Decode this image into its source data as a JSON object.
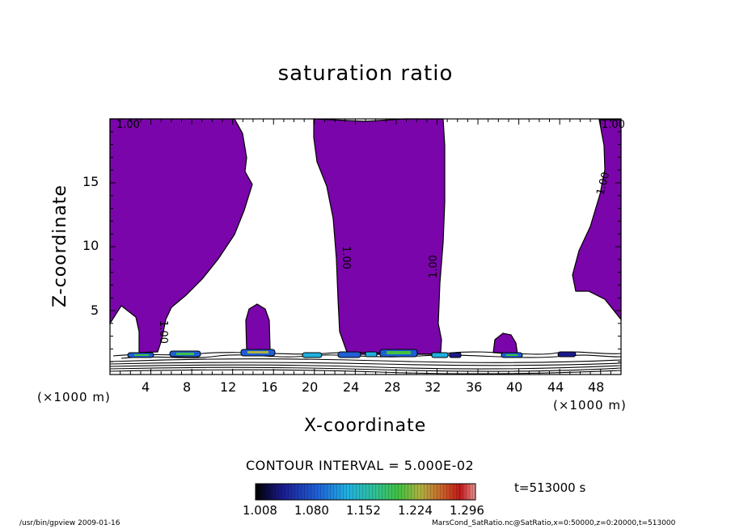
{
  "chart_data": {
    "type": "contour",
    "title": "saturation ratio",
    "xlabel": "X-coordinate",
    "ylabel": "Z-coordinate",
    "x_unit": "(×1000 m)",
    "xlim": [
      0,
      50
    ],
    "ylim": [
      0,
      20
    ],
    "x_ticks": [
      "4",
      "8",
      "12",
      "16",
      "20",
      "24",
      "28",
      "32",
      "36",
      "40",
      "44",
      "48"
    ],
    "y_ticks": [
      "5",
      "10",
      "15"
    ],
    "contour_labels": [
      "1.00",
      "1.00",
      "1.00",
      "1.00",
      "1.00",
      "1.00"
    ],
    "contour_interval_text": "CONTOUR INTERVAL = 5.000E-02",
    "fill_color": "#7a05aa",
    "colorbar": {
      "labels": [
        "1.008",
        "1.080",
        "1.152",
        "1.224",
        "1.296"
      ],
      "colors": [
        "#000000",
        "#1a1a8c",
        "#1f5fd6",
        "#20b0e0",
        "#30c090",
        "#40c040",
        "#b0b040",
        "#c86028",
        "#c01818",
        "#e89090"
      ]
    },
    "time_label": "t=513000 s"
  },
  "footer": {
    "left": "/usr/bin/gpview   2009-01-16",
    "right": "MarsCond_SatRatio.nc@SatRatio,x=0:50000,z=0:20000,t=513000"
  }
}
